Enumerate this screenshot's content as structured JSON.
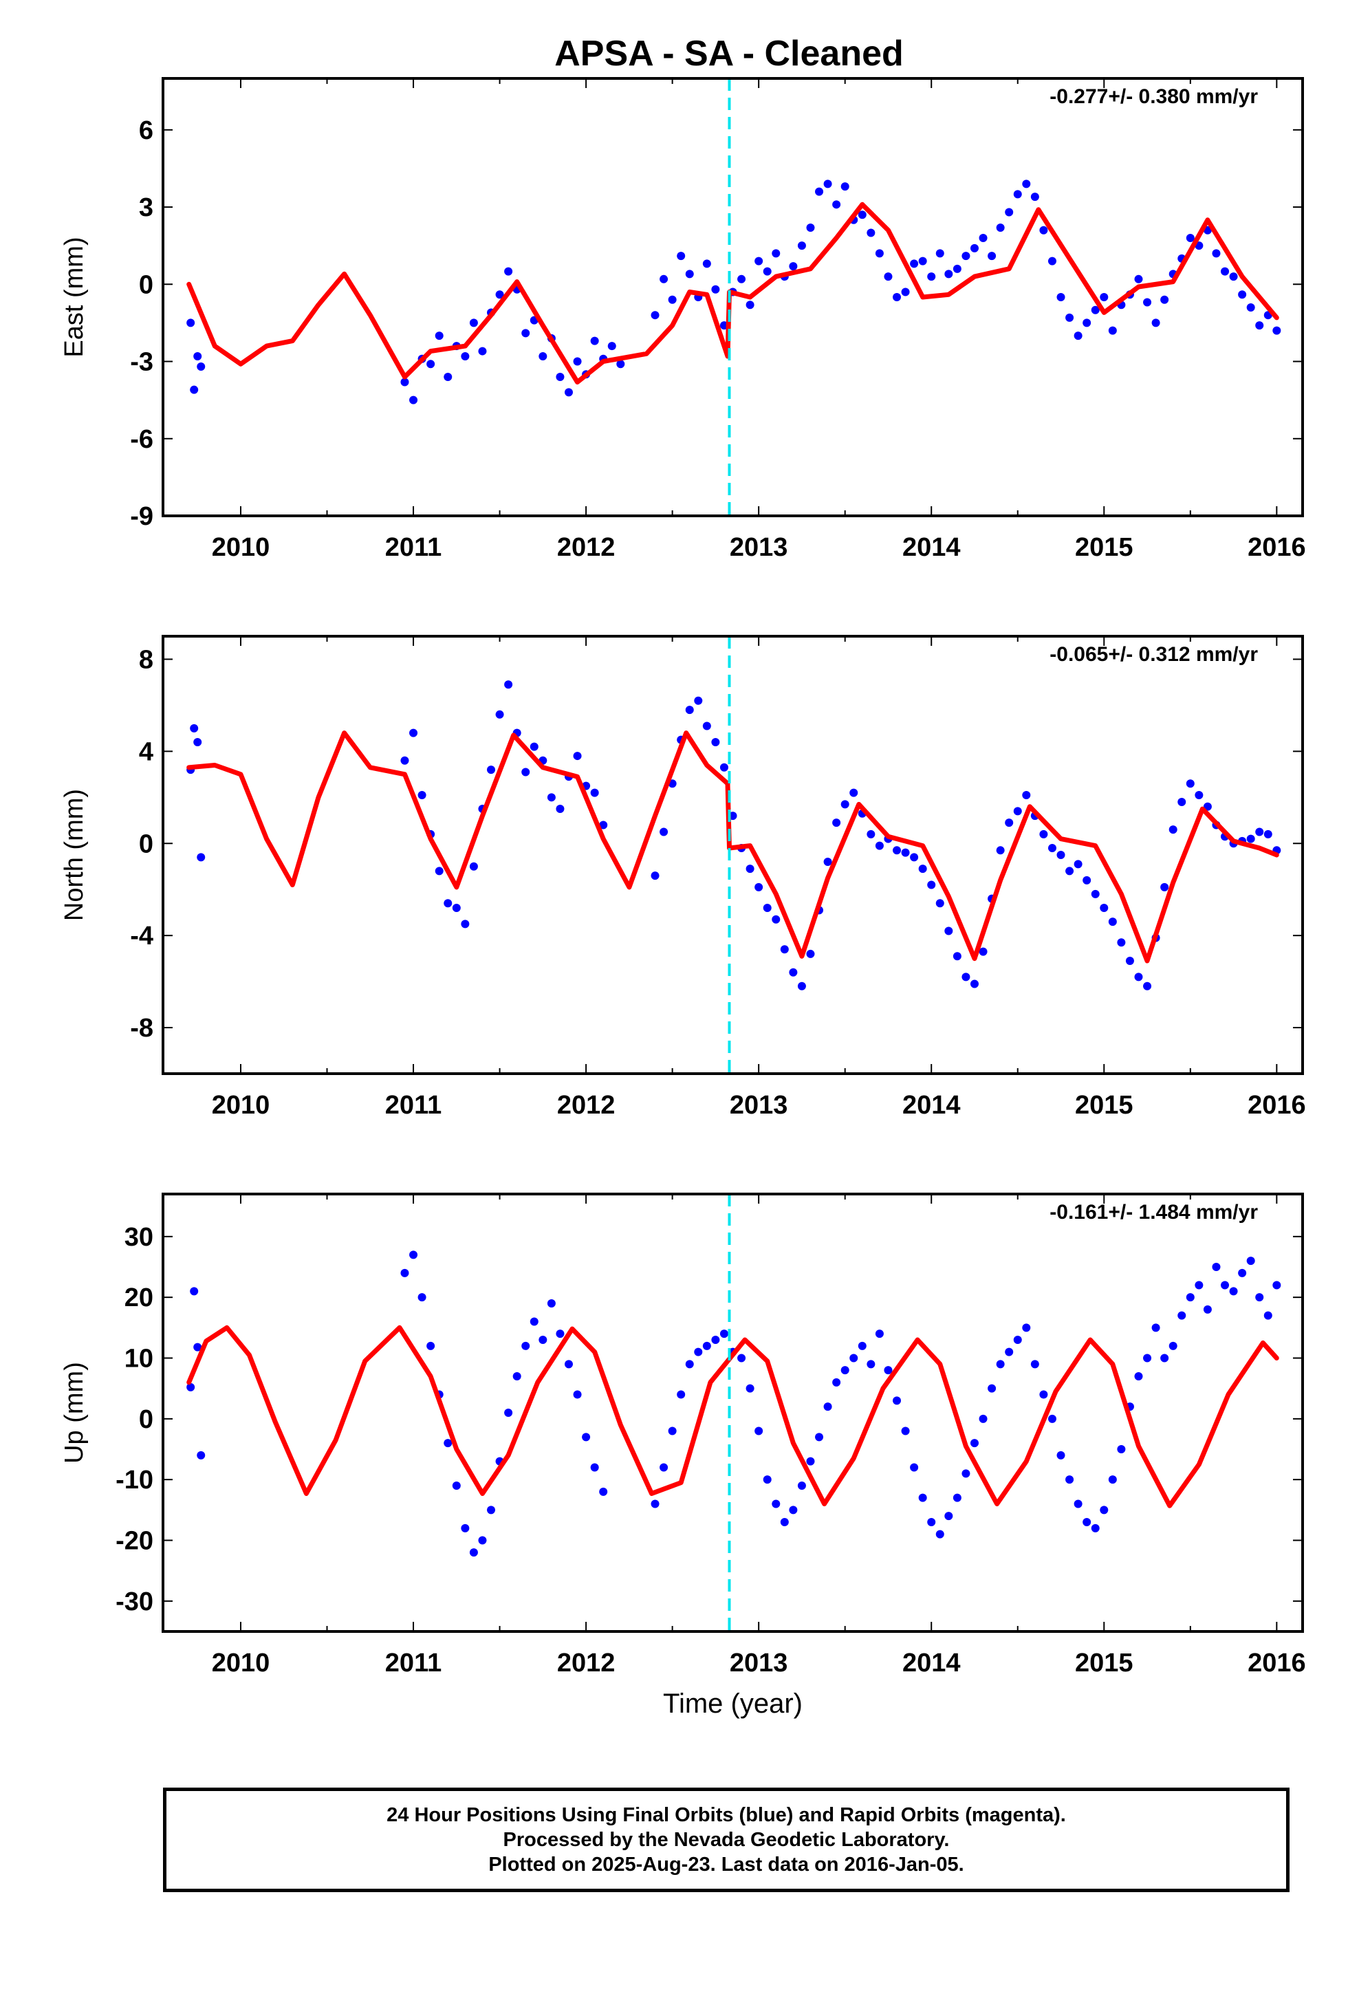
{
  "title": "APSA  - SA - Cleaned",
  "colors": {
    "data_points": "#0000ff",
    "model_curve": "#ff0000",
    "event_line": "#00e5ee",
    "axes": "#000000"
  },
  "chart_data": [
    {
      "type": "scatter",
      "panel": "east",
      "ylabel": "East (mm)",
      "xlabel": "",
      "annotation": "-0.277+/- 0.380 mm/yr",
      "xlim": [
        2009.55,
        2016.15
      ],
      "ylim": [
        -9,
        8
      ],
      "xticks": [
        2010,
        2011,
        2012,
        2013,
        2014,
        2015,
        2016
      ],
      "yticks": [
        -9,
        -6,
        -3,
        0,
        3,
        6
      ],
      "event_line_x": 2012.83,
      "series": [
        {
          "role": "daily_positions",
          "color": "#0000ff",
          "x": [
            2009.71,
            2009.73,
            2009.75,
            2009.77,
            2010.95,
            2011.0,
            2011.05,
            2011.1,
            2011.15,
            2011.2,
            2011.25,
            2011.3,
            2011.35,
            2011.4,
            2011.45,
            2011.5,
            2011.55,
            2011.6,
            2011.65,
            2011.7,
            2011.75,
            2011.8,
            2011.85,
            2011.9,
            2011.95,
            2012.0,
            2012.05,
            2012.1,
            2012.15,
            2012.2,
            2012.4,
            2012.45,
            2012.5,
            2012.55,
            2012.6,
            2012.65,
            2012.7,
            2012.75,
            2012.8,
            2012.85,
            2012.9,
            2012.95,
            2013.0,
            2013.05,
            2013.1,
            2013.15,
            2013.2,
            2013.25,
            2013.3,
            2013.35,
            2013.4,
            2013.45,
            2013.5,
            2013.55,
            2013.6,
            2013.65,
            2013.7,
            2013.75,
            2013.8,
            2013.85,
            2013.9,
            2013.95,
            2014.0,
            2014.05,
            2014.1,
            2014.15,
            2014.2,
            2014.25,
            2014.3,
            2014.35,
            2014.4,
            2014.45,
            2014.5,
            2014.55,
            2014.6,
            2014.65,
            2014.7,
            2014.75,
            2014.8,
            2014.85,
            2014.9,
            2014.95,
            2015.0,
            2015.05,
            2015.1,
            2015.15,
            2015.2,
            2015.25,
            2015.3,
            2015.35,
            2015.4,
            2015.45,
            2015.5,
            2015.55,
            2015.6,
            2015.65,
            2015.7,
            2015.75,
            2015.8,
            2015.85,
            2015.9,
            2015.95,
            2016.0
          ],
          "y": [
            -1.5,
            -4.1,
            -2.8,
            -3.2,
            -3.8,
            -4.5,
            -2.9,
            -3.1,
            -2.0,
            -3.6,
            -2.4,
            -2.8,
            -1.5,
            -2.6,
            -1.1,
            -0.4,
            0.5,
            -0.2,
            -1.9,
            -1.4,
            -2.8,
            -2.1,
            -3.6,
            -4.2,
            -3.0,
            -3.5,
            -2.2,
            -2.9,
            -2.4,
            -3.1,
            -1.2,
            0.2,
            -0.6,
            1.1,
            0.4,
            -0.5,
            0.8,
            -0.2,
            -1.6,
            -0.3,
            0.2,
            -0.8,
            0.9,
            0.5,
            1.2,
            0.3,
            0.7,
            1.5,
            2.2,
            3.6,
            3.9,
            3.1,
            3.8,
            2.5,
            2.7,
            2.0,
            1.2,
            0.3,
            -0.5,
            -0.3,
            0.8,
            0.9,
            0.3,
            1.2,
            0.4,
            0.6,
            1.1,
            1.4,
            1.8,
            1.1,
            2.2,
            2.8,
            3.5,
            3.9,
            3.4,
            2.1,
            0.9,
            -0.5,
            -1.3,
            -2.0,
            -1.5,
            -1.0,
            -0.5,
            -1.8,
            -0.8,
            -0.4,
            0.2,
            -0.7,
            -1.5,
            -0.6,
            0.4,
            1.0,
            1.8,
            1.5,
            2.1,
            1.2,
            0.5,
            0.3,
            -0.4,
            -0.9,
            -1.6,
            -1.2,
            -1.8
          ]
        },
        {
          "role": "model_fit",
          "color": "#ff0000",
          "x": [
            2009.7,
            2009.85,
            2010.0,
            2010.15,
            2010.3,
            2010.45,
            2010.6,
            2010.75,
            2010.95,
            2011.1,
            2011.3,
            2011.45,
            2011.6,
            2011.75,
            2011.95,
            2012.1,
            2012.35,
            2012.5,
            2012.6,
            2012.7,
            2012.82,
            2012.83,
            2012.95,
            2013.1,
            2013.3,
            2013.45,
            2013.6,
            2013.75,
            2013.95,
            2014.1,
            2014.25,
            2014.45,
            2014.62,
            2014.8,
            2015.0,
            2015.2,
            2015.4,
            2015.6,
            2015.8,
            2016.0
          ],
          "y": [
            0.0,
            -2.4,
            -3.1,
            -2.4,
            -2.2,
            -0.8,
            0.4,
            -1.2,
            -3.6,
            -2.6,
            -2.4,
            -1.2,
            0.1,
            -1.6,
            -3.8,
            -3.0,
            -2.7,
            -1.6,
            -0.3,
            -0.4,
            -2.8,
            -0.3,
            -0.5,
            0.3,
            0.6,
            1.8,
            3.1,
            2.1,
            -0.5,
            -0.4,
            0.3,
            0.6,
            2.9,
            1.0,
            -1.1,
            -0.1,
            0.1,
            2.5,
            0.3,
            -1.3
          ]
        }
      ]
    },
    {
      "type": "scatter",
      "panel": "north",
      "ylabel": "North (mm)",
      "xlabel": "",
      "annotation": "-0.065+/- 0.312 mm/yr",
      "xlim": [
        2009.55,
        2016.15
      ],
      "ylim": [
        -10,
        9
      ],
      "xticks": [
        2010,
        2011,
        2012,
        2013,
        2014,
        2015,
        2016
      ],
      "yticks": [
        -8,
        -4,
        0,
        4,
        8
      ],
      "event_line_x": 2012.83,
      "series": [
        {
          "role": "daily_positions",
          "color": "#0000ff",
          "x": [
            2009.71,
            2009.73,
            2009.75,
            2009.77,
            2010.95,
            2011.0,
            2011.05,
            2011.1,
            2011.15,
            2011.2,
            2011.25,
            2011.3,
            2011.35,
            2011.4,
            2011.45,
            2011.5,
            2011.55,
            2011.6,
            2011.65,
            2011.7,
            2011.75,
            2011.8,
            2011.85,
            2011.9,
            2011.95,
            2012.0,
            2012.05,
            2012.1,
            2012.4,
            2012.45,
            2012.5,
            2012.55,
            2012.6,
            2012.65,
            2012.7,
            2012.75,
            2012.8,
            2012.85,
            2012.9,
            2012.95,
            2013.0,
            2013.05,
            2013.1,
            2013.15,
            2013.2,
            2013.25,
            2013.3,
            2013.35,
            2013.4,
            2013.45,
            2013.5,
            2013.55,
            2013.6,
            2013.65,
            2013.7,
            2013.75,
            2013.8,
            2013.85,
            2013.9,
            2013.95,
            2014.0,
            2014.05,
            2014.1,
            2014.15,
            2014.2,
            2014.25,
            2014.3,
            2014.35,
            2014.4,
            2014.45,
            2014.5,
            2014.55,
            2014.6,
            2014.65,
            2014.7,
            2014.75,
            2014.8,
            2014.85,
            2014.9,
            2014.95,
            2015.0,
            2015.05,
            2015.1,
            2015.15,
            2015.2,
            2015.25,
            2015.3,
            2015.35,
            2015.4,
            2015.45,
            2015.5,
            2015.55,
            2015.6,
            2015.65,
            2015.7,
            2015.75,
            2015.8,
            2015.85,
            2015.9,
            2015.95,
            2016.0
          ],
          "y": [
            3.2,
            5.0,
            4.4,
            -0.6,
            3.6,
            4.8,
            2.1,
            0.4,
            -1.2,
            -2.6,
            -2.8,
            -3.5,
            -1.0,
            1.5,
            3.2,
            5.6,
            6.9,
            4.8,
            3.1,
            4.2,
            3.6,
            2.0,
            1.5,
            2.9,
            3.8,
            2.5,
            2.2,
            0.8,
            -1.4,
            0.5,
            2.6,
            4.5,
            5.8,
            6.2,
            5.1,
            4.4,
            3.3,
            1.2,
            -0.2,
            -1.1,
            -1.9,
            -2.8,
            -3.3,
            -4.6,
            -5.6,
            -6.2,
            -4.8,
            -2.9,
            -0.8,
            0.9,
            1.7,
            2.2,
            1.3,
            0.4,
            -0.1,
            0.2,
            -0.3,
            -0.4,
            -0.6,
            -1.1,
            -1.8,
            -2.6,
            -3.8,
            -4.9,
            -5.8,
            -6.1,
            -4.7,
            -2.4,
            -0.3,
            0.9,
            1.4,
            2.1,
            1.2,
            0.4,
            -0.2,
            -0.5,
            -1.2,
            -0.9,
            -1.6,
            -2.2,
            -2.8,
            -3.4,
            -4.3,
            -5.1,
            -5.8,
            -6.2,
            -4.1,
            -1.9,
            0.6,
            1.8,
            2.6,
            2.1,
            1.6,
            0.8,
            0.3,
            0.0,
            0.1,
            0.2,
            0.5,
            0.4,
            -0.3
          ]
        },
        {
          "role": "model_fit",
          "color": "#ff0000",
          "x": [
            2009.7,
            2009.85,
            2010.0,
            2010.15,
            2010.3,
            2010.45,
            2010.6,
            2010.75,
            2010.95,
            2011.1,
            2011.25,
            2011.4,
            2011.58,
            2011.75,
            2011.95,
            2012.1,
            2012.25,
            2012.4,
            2012.58,
            2012.7,
            2012.82,
            2012.83,
            2012.95,
            2013.1,
            2013.25,
            2013.4,
            2013.58,
            2013.75,
            2013.95,
            2014.1,
            2014.25,
            2014.4,
            2014.57,
            2014.75,
            2014.95,
            2015.1,
            2015.25,
            2015.4,
            2015.57,
            2015.75,
            2015.9,
            2016.0
          ],
          "y": [
            3.3,
            3.4,
            3.0,
            0.2,
            -1.8,
            2.0,
            4.8,
            3.3,
            3.0,
            0.2,
            -1.9,
            1.2,
            4.7,
            3.3,
            2.9,
            0.2,
            -1.9,
            1.2,
            4.8,
            3.4,
            2.6,
            -0.2,
            -0.1,
            -2.2,
            -4.9,
            -1.5,
            1.7,
            0.3,
            -0.1,
            -2.3,
            -5.0,
            -1.6,
            1.6,
            0.2,
            -0.1,
            -2.2,
            -5.1,
            -1.7,
            1.5,
            0.1,
            -0.2,
            -0.5
          ]
        }
      ]
    },
    {
      "type": "scatter",
      "panel": "up",
      "ylabel": "Up (mm)",
      "xlabel": "Time (year)",
      "annotation": "-0.161+/- 1.484 mm/yr",
      "xlim": [
        2009.55,
        2016.15
      ],
      "ylim": [
        -35,
        37
      ],
      "xticks": [
        2010,
        2011,
        2012,
        2013,
        2014,
        2015,
        2016
      ],
      "yticks": [
        -30,
        -20,
        -10,
        0,
        10,
        20,
        30
      ],
      "event_line_x": 2012.83,
      "series": [
        {
          "role": "daily_positions",
          "color": "#0000ff",
          "x": [
            2009.71,
            2009.73,
            2009.75,
            2009.77,
            2010.95,
            2011.0,
            2011.05,
            2011.1,
            2011.15,
            2011.2,
            2011.25,
            2011.3,
            2011.35,
            2011.4,
            2011.45,
            2011.5,
            2011.55,
            2011.6,
            2011.65,
            2011.7,
            2011.75,
            2011.8,
            2011.85,
            2011.9,
            2011.95,
            2012.0,
            2012.05,
            2012.1,
            2012.4,
            2012.45,
            2012.5,
            2012.55,
            2012.6,
            2012.65,
            2012.7,
            2012.75,
            2012.8,
            2012.85,
            2012.9,
            2012.95,
            2013.0,
            2013.05,
            2013.1,
            2013.15,
            2013.2,
            2013.25,
            2013.3,
            2013.35,
            2013.4,
            2013.45,
            2013.5,
            2013.55,
            2013.6,
            2013.65,
            2013.7,
            2013.75,
            2013.8,
            2013.85,
            2013.9,
            2013.95,
            2014.0,
            2014.05,
            2014.1,
            2014.15,
            2014.2,
            2014.25,
            2014.3,
            2014.35,
            2014.4,
            2014.45,
            2014.5,
            2014.55,
            2014.6,
            2014.65,
            2014.7,
            2014.75,
            2014.8,
            2014.85,
            2014.9,
            2014.95,
            2015.0,
            2015.05,
            2015.1,
            2015.15,
            2015.2,
            2015.25,
            2015.3,
            2015.35,
            2015.4,
            2015.45,
            2015.5,
            2015.55,
            2015.6,
            2015.65,
            2015.7,
            2015.75,
            2015.8,
            2015.85,
            2015.9,
            2015.95,
            2016.0
          ],
          "y": [
            5.2,
            21.0,
            11.8,
            -6.0,
            24.0,
            27.0,
            20.0,
            12.0,
            4.0,
            -4.0,
            -11.0,
            -18.0,
            -22.0,
            -20.0,
            -15.0,
            -7.0,
            1.0,
            7.0,
            12.0,
            16.0,
            13.0,
            19.0,
            14.0,
            9.0,
            4.0,
            -3.0,
            -8.0,
            -12.0,
            -14.0,
            -8.0,
            -2.0,
            4.0,
            9.0,
            11.0,
            12.0,
            13.0,
            14.0,
            11.0,
            10.0,
            5.0,
            -2.0,
            -10.0,
            -14.0,
            -17.0,
            -15.0,
            -11.0,
            -7.0,
            -3.0,
            2.0,
            6.0,
            8.0,
            10.0,
            12.0,
            9.0,
            14.0,
            8.0,
            3.0,
            -2.0,
            -8.0,
            -13.0,
            -17.0,
            -19.0,
            -16.0,
            -13.0,
            -9.0,
            -4.0,
            0.0,
            5.0,
            9.0,
            11.0,
            13.0,
            15.0,
            9.0,
            4.0,
            0.0,
            -6.0,
            -10.0,
            -14.0,
            -17.0,
            -18.0,
            -15.0,
            -10.0,
            -5.0,
            2.0,
            7.0,
            10.0,
            15.0,
            10.0,
            12.0,
            17.0,
            20.0,
            22.0,
            18.0,
            25.0,
            22.0,
            21.0,
            24.0,
            26.0,
            20.0,
            17.0,
            22.0
          ]
        },
        {
          "role": "model_fit",
          "color": "#ff0000",
          "x": [
            2009.7,
            2009.8,
            2009.92,
            2010.05,
            2010.2,
            2010.38,
            2010.55,
            2010.72,
            2010.92,
            2011.1,
            2011.25,
            2011.4,
            2011.55,
            2011.72,
            2011.92,
            2012.05,
            2012.2,
            2012.38,
            2012.55,
            2012.72,
            2012.92,
            2013.05,
            2013.2,
            2013.38,
            2013.55,
            2013.72,
            2013.92,
            2014.05,
            2014.2,
            2014.38,
            2014.55,
            2014.72,
            2014.92,
            2015.05,
            2015.2,
            2015.38,
            2015.55,
            2015.72,
            2015.92,
            2016.0
          ],
          "y": [
            6.0,
            12.8,
            15.0,
            10.5,
            -0.5,
            -12.3,
            -3.5,
            9.5,
            15.0,
            7.0,
            -5.0,
            -12.3,
            -6.0,
            6.0,
            14.8,
            11.0,
            -1.0,
            -12.3,
            -10.5,
            6.0,
            13.0,
            9.5,
            -4.0,
            -14.0,
            -6.5,
            5.0,
            13.0,
            9.0,
            -4.5,
            -14.0,
            -7.0,
            4.5,
            13.0,
            9.0,
            -4.5,
            -14.3,
            -7.5,
            4.0,
            12.5,
            10.0
          ]
        }
      ]
    }
  ],
  "footer": {
    "line1": "24 Hour Positions Using Final Orbits (blue) and Rapid Orbits (magenta).",
    "line2": "Processed by the Nevada Geodetic Laboratory.",
    "line3": "Plotted on 2025-Aug-23. Last data on 2016-Jan-05."
  }
}
